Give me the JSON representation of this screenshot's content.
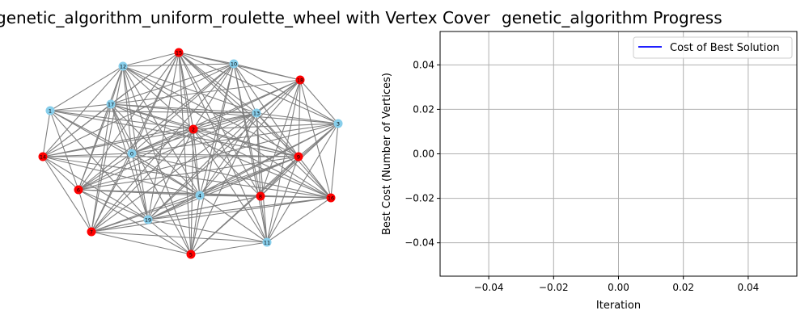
{
  "figure": {
    "left_title": "_genetic_algorithm_uniform_roulette_wheel with Vertex Cover",
    "right_title": "genetic_algorithm Progress"
  },
  "colors": {
    "in_cover": "#ff0000",
    "not_in_cover": "#87ceeb",
    "edge": "#808080",
    "line": "#0000ff",
    "grid": "#b0b0b0"
  },
  "chart_data": [
    {
      "type": "network",
      "title": "_genetic_algorithm_uniform_roulette_wheel with Vertex Cover",
      "nodes": [
        {
          "id": "0",
          "label": "0",
          "in_cover": false
        },
        {
          "id": "1",
          "label": "1",
          "in_cover": false
        },
        {
          "id": "2",
          "label": "2",
          "in_cover": true
        },
        {
          "id": "3",
          "label": "3",
          "in_cover": false
        },
        {
          "id": "4",
          "label": "4",
          "in_cover": false
        },
        {
          "id": "5",
          "label": "5",
          "in_cover": true
        },
        {
          "id": "6",
          "label": "6",
          "in_cover": true
        },
        {
          "id": "7",
          "label": "7",
          "in_cover": true
        },
        {
          "id": "8",
          "label": "8",
          "in_cover": true
        },
        {
          "id": "9",
          "label": "9",
          "in_cover": true
        },
        {
          "id": "10",
          "label": "10",
          "in_cover": false
        },
        {
          "id": "11",
          "label": "11",
          "in_cover": false
        },
        {
          "id": "12",
          "label": "12",
          "in_cover": false
        },
        {
          "id": "13",
          "label": "13",
          "in_cover": false
        },
        {
          "id": "14",
          "label": "14",
          "in_cover": true
        },
        {
          "id": "15",
          "label": "15",
          "in_cover": true
        },
        {
          "id": "16",
          "label": "16",
          "in_cover": true
        },
        {
          "id": "17",
          "label": "17",
          "in_cover": false
        },
        {
          "id": "18",
          "label": "18",
          "in_cover": true
        },
        {
          "id": "19",
          "label": "19",
          "in_cover": false
        }
      ],
      "edges": [
        [
          "0",
          "1"
        ],
        [
          "0",
          "2"
        ],
        [
          "0",
          "3"
        ],
        [
          "0",
          "4"
        ],
        [
          "0",
          "6"
        ],
        [
          "0",
          "7"
        ],
        [
          "0",
          "9"
        ],
        [
          "0",
          "10"
        ],
        [
          "0",
          "12"
        ],
        [
          "0",
          "13"
        ],
        [
          "0",
          "14"
        ],
        [
          "0",
          "15"
        ],
        [
          "0",
          "16"
        ],
        [
          "0",
          "17"
        ],
        [
          "0",
          "18"
        ],
        [
          "0",
          "19"
        ],
        [
          "1",
          "2"
        ],
        [
          "1",
          "4"
        ],
        [
          "1",
          "6"
        ],
        [
          "1",
          "9"
        ],
        [
          "1",
          "12"
        ],
        [
          "1",
          "13"
        ],
        [
          "1",
          "14"
        ],
        [
          "1",
          "17"
        ],
        [
          "1",
          "19"
        ],
        [
          "2",
          "3"
        ],
        [
          "2",
          "4"
        ],
        [
          "2",
          "5"
        ],
        [
          "2",
          "6"
        ],
        [
          "2",
          "7"
        ],
        [
          "2",
          "8"
        ],
        [
          "2",
          "9"
        ],
        [
          "2",
          "10"
        ],
        [
          "2",
          "11"
        ],
        [
          "2",
          "12"
        ],
        [
          "2",
          "13"
        ],
        [
          "2",
          "14"
        ],
        [
          "2",
          "15"
        ],
        [
          "2",
          "16"
        ],
        [
          "2",
          "17"
        ],
        [
          "2",
          "18"
        ],
        [
          "2",
          "19"
        ],
        [
          "3",
          "4"
        ],
        [
          "3",
          "5"
        ],
        [
          "3",
          "6"
        ],
        [
          "3",
          "8"
        ],
        [
          "3",
          "9"
        ],
        [
          "3",
          "10"
        ],
        [
          "3",
          "11"
        ],
        [
          "3",
          "13"
        ],
        [
          "3",
          "15"
        ],
        [
          "3",
          "16"
        ],
        [
          "3",
          "17"
        ],
        [
          "3",
          "18"
        ],
        [
          "3",
          "19"
        ],
        [
          "4",
          "5"
        ],
        [
          "4",
          "6"
        ],
        [
          "4",
          "7"
        ],
        [
          "4",
          "8"
        ],
        [
          "4",
          "9"
        ],
        [
          "4",
          "10"
        ],
        [
          "4",
          "11"
        ],
        [
          "4",
          "12"
        ],
        [
          "4",
          "13"
        ],
        [
          "4",
          "14"
        ],
        [
          "4",
          "15"
        ],
        [
          "4",
          "16"
        ],
        [
          "4",
          "17"
        ],
        [
          "4",
          "18"
        ],
        [
          "4",
          "19"
        ],
        [
          "5",
          "6"
        ],
        [
          "5",
          "7"
        ],
        [
          "5",
          "9"
        ],
        [
          "5",
          "10"
        ],
        [
          "5",
          "11"
        ],
        [
          "5",
          "12"
        ],
        [
          "5",
          "13"
        ],
        [
          "5",
          "15"
        ],
        [
          "5",
          "17"
        ],
        [
          "5",
          "19"
        ],
        [
          "6",
          "7"
        ],
        [
          "6",
          "8"
        ],
        [
          "6",
          "9"
        ],
        [
          "6",
          "10"
        ],
        [
          "6",
          "12"
        ],
        [
          "6",
          "13"
        ],
        [
          "6",
          "14"
        ],
        [
          "6",
          "15"
        ],
        [
          "6",
          "16"
        ],
        [
          "6",
          "17"
        ],
        [
          "6",
          "19"
        ],
        [
          "7",
          "8"
        ],
        [
          "7",
          "9"
        ],
        [
          "7",
          "10"
        ],
        [
          "7",
          "11"
        ],
        [
          "7",
          "12"
        ],
        [
          "7",
          "14"
        ],
        [
          "7",
          "15"
        ],
        [
          "7",
          "16"
        ],
        [
          "7",
          "17"
        ],
        [
          "7",
          "18"
        ],
        [
          "7",
          "19"
        ],
        [
          "8",
          "9"
        ],
        [
          "8",
          "10"
        ],
        [
          "8",
          "11"
        ],
        [
          "8",
          "13"
        ],
        [
          "8",
          "15"
        ],
        [
          "8",
          "16"
        ],
        [
          "8",
          "18"
        ],
        [
          "8",
          "19"
        ],
        [
          "9",
          "10"
        ],
        [
          "9",
          "11"
        ],
        [
          "9",
          "12"
        ],
        [
          "9",
          "13"
        ],
        [
          "9",
          "14"
        ],
        [
          "9",
          "15"
        ],
        [
          "9",
          "16"
        ],
        [
          "9",
          "17"
        ],
        [
          "9",
          "18"
        ],
        [
          "9",
          "19"
        ],
        [
          "10",
          "11"
        ],
        [
          "10",
          "12"
        ],
        [
          "10",
          "13"
        ],
        [
          "10",
          "14"
        ],
        [
          "10",
          "15"
        ],
        [
          "10",
          "17"
        ],
        [
          "10",
          "18"
        ],
        [
          "11",
          "13"
        ],
        [
          "11",
          "15"
        ],
        [
          "11",
          "16"
        ],
        [
          "11",
          "18"
        ],
        [
          "11",
          "19"
        ],
        [
          "12",
          "13"
        ],
        [
          "12",
          "14"
        ],
        [
          "12",
          "15"
        ],
        [
          "12",
          "16"
        ],
        [
          "12",
          "17"
        ],
        [
          "12",
          "19"
        ],
        [
          "13",
          "14"
        ],
        [
          "13",
          "15"
        ],
        [
          "13",
          "16"
        ],
        [
          "13",
          "17"
        ],
        [
          "13",
          "18"
        ],
        [
          "13",
          "19"
        ],
        [
          "14",
          "15"
        ],
        [
          "14",
          "16"
        ],
        [
          "14",
          "17"
        ],
        [
          "14",
          "19"
        ],
        [
          "15",
          "16"
        ],
        [
          "15",
          "17"
        ],
        [
          "15",
          "18"
        ],
        [
          "15",
          "19"
        ],
        [
          "16",
          "17"
        ],
        [
          "16",
          "18"
        ],
        [
          "16",
          "19"
        ],
        [
          "17",
          "18"
        ],
        [
          "17",
          "19"
        ],
        [
          "18",
          "19"
        ]
      ]
    },
    {
      "type": "line",
      "title": "genetic_algorithm Progress",
      "xlabel": "Iteration",
      "ylabel": "Best Cost (Number of Vertices)",
      "xlim": [
        -0.055,
        0.055
      ],
      "ylim": [
        -0.055,
        0.055
      ],
      "xticks": [
        "−0.04",
        "−0.02",
        "0.00",
        "0.02",
        "0.04"
      ],
      "xtick_values": [
        -0.04,
        -0.02,
        0.0,
        0.02,
        0.04
      ],
      "yticks": [
        "−0.04",
        "−0.02",
        "0.00",
        "0.02",
        "0.04"
      ],
      "ytick_values": [
        -0.04,
        -0.02,
        0.0,
        0.02,
        0.04
      ],
      "grid": true,
      "legend_position": "top-right",
      "series": [
        {
          "name": "Cost of Best Solution",
          "x": [],
          "y": []
        }
      ]
    }
  ]
}
